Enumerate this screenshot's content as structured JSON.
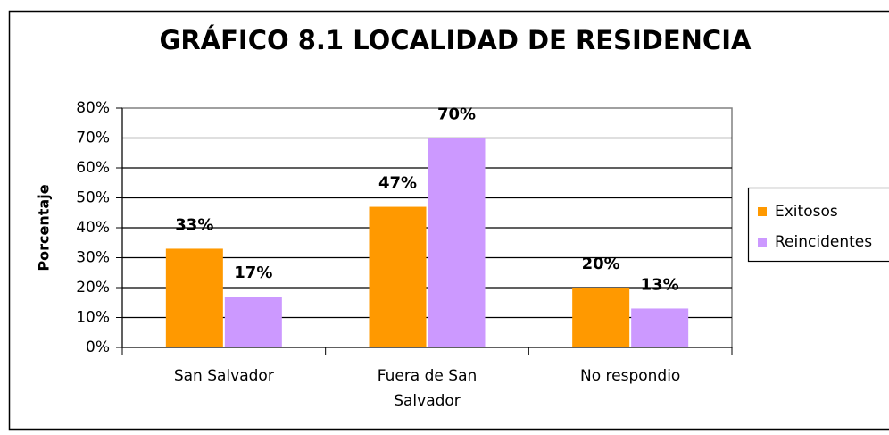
{
  "chart_data": {
    "type": "bar",
    "title": "GRÁFICO 8.1 LOCALIDAD DE RESIDENCIA",
    "y_label": "Porcentaje",
    "categories": [
      "San Salvador",
      "Fuera de San Salvador",
      "No respondio"
    ],
    "series": [
      {
        "name": "Exitosos",
        "color": "#ff9900",
        "values": [
          33,
          47,
          20
        ],
        "value_labels": [
          "33%",
          "47%",
          "20%"
        ]
      },
      {
        "name": "Reincidentes",
        "color": "#cc99ff",
        "values": [
          17,
          70,
          13
        ],
        "value_labels": [
          "17%",
          "70%",
          "13%"
        ]
      }
    ],
    "ylim": [
      0,
      80
    ],
    "yticks": [
      {
        "value": 0,
        "label": "0%"
      },
      {
        "value": 10,
        "label": "10%"
      },
      {
        "value": 20,
        "label": "20%"
      },
      {
        "value": 30,
        "label": "30%"
      },
      {
        "value": 40,
        "label": "40%"
      },
      {
        "value": 50,
        "label": "50%"
      },
      {
        "value": 60,
        "label": "60%"
      },
      {
        "value": 70,
        "label": "70%"
      },
      {
        "value": 80,
        "label": "80%"
      }
    ],
    "grid": true,
    "legend": "right"
  }
}
